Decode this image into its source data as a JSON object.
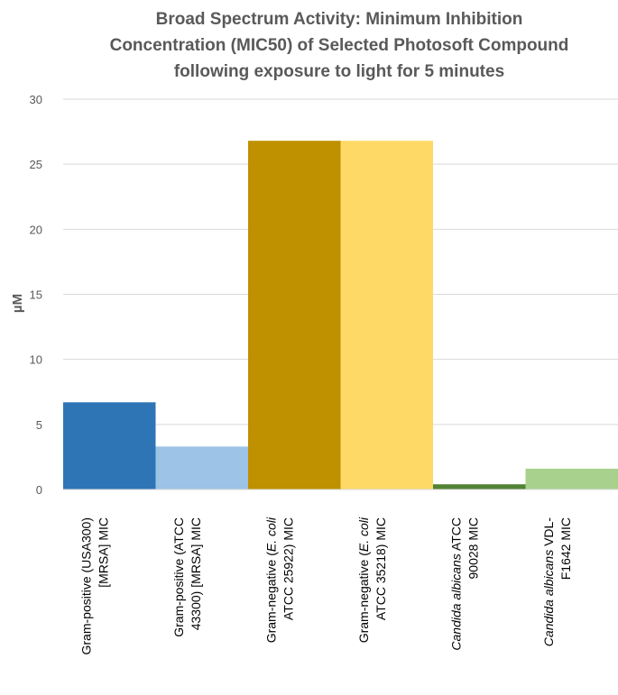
{
  "chart_data": {
    "type": "bar",
    "title": "Broad Spectrum Activity: Minimum Inhibition Concentration (MIC50) of Selected Photosoft Compound following exposure to light for 5 minutes",
    "title_lines": [
      "Broad Spectrum Activity: Minimum Inhibition",
      "Concentration (MIC50) of Selected Photosoft Compound",
      "following exposure to light for 5 minutes"
    ],
    "xlabel": "",
    "ylabel": "µM",
    "ylim": [
      0,
      30
    ],
    "yticks": [
      0,
      5,
      10,
      15,
      20,
      25,
      30
    ],
    "grid": true,
    "legend": "none",
    "categories": [
      "Gram-positive (USA300) [MRSA] MIC",
      "Gram-positive (ATCC 43300) [MRSA] MIC",
      "Gram-negative (E. coli ATCC 25922) MIC",
      "Gram-negative (E. coli ATCC 35218) MIC",
      "Candida albicans ATCC 90028 MIC",
      "Candida albicans VDL-F1642 MIC"
    ],
    "category_lines": [
      [
        [
          {
            "t": "Gram-positive (USA300)",
            "i": false
          }
        ],
        [
          {
            "t": "[MRSA] MIC",
            "i": false
          }
        ]
      ],
      [
        [
          {
            "t": "Gram-positive (ATCC",
            "i": false
          }
        ],
        [
          {
            "t": "43300) [MRSA] MIC",
            "i": false
          }
        ]
      ],
      [
        [
          {
            "t": "Gram-negative (",
            "i": false
          },
          {
            "t": "E. coli",
            "i": true
          }
        ],
        [
          {
            "t": "ATCC 25922) MIC",
            "i": false
          }
        ]
      ],
      [
        [
          {
            "t": "Gram-negative (",
            "i": false
          },
          {
            "t": "E. coli",
            "i": true
          }
        ],
        [
          {
            "t": "ATCC 35218) MIC",
            "i": false
          }
        ]
      ],
      [
        [
          {
            "t": "Candida albicans",
            "i": true
          },
          {
            "t": " ATCC",
            "i": false
          }
        ],
        [
          {
            "t": "90028 MIC",
            "i": false
          }
        ]
      ],
      [
        [
          {
            "t": "Candida albicans",
            "i": true
          },
          {
            "t": " VDL-",
            "i": false
          }
        ],
        [
          {
            "t": "F1642 MIC",
            "i": false
          }
        ]
      ]
    ],
    "values": [
      6.7,
      3.3,
      26.8,
      26.8,
      0.4,
      1.6
    ],
    "colors": [
      "#2e75b6",
      "#9dc3e6",
      "#bf9000",
      "#ffd966",
      "#538135",
      "#a9d18e"
    ]
  }
}
